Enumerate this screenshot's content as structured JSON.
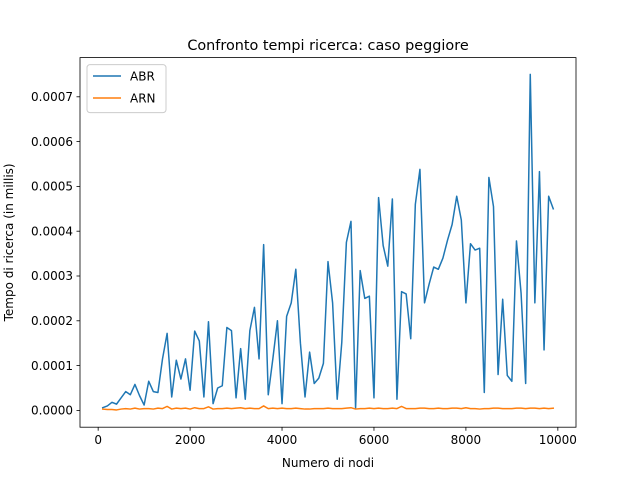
{
  "chart_data": {
    "type": "line",
    "title": "Confronto tempi ricerca: caso peggiore",
    "xlabel": "Numero di nodi",
    "ylabel": "Tempo di ricerca (in millis)",
    "xlim": [
      -395,
      10395
    ],
    "ylim": [
      -3.75e-05,
      0.0007875
    ],
    "xticks": [
      0,
      2000,
      4000,
      6000,
      8000,
      10000
    ],
    "xtick_labels": [
      "0",
      "2000",
      "4000",
      "6000",
      "8000",
      "10000"
    ],
    "yticks": [
      0,
      0.0001,
      0.0002,
      0.0003,
      0.0004,
      0.0005,
      0.0006,
      0.0007
    ],
    "ytick_labels": [
      "0.0000",
      "0.0001",
      "0.0002",
      "0.0003",
      "0.0004",
      "0.0005",
      "0.0006",
      "0.0007"
    ],
    "grid": false,
    "legend_position": "top-left",
    "x": [
      100,
      200,
      300,
      400,
      500,
      600,
      700,
      800,
      900,
      1000,
      1100,
      1200,
      1300,
      1400,
      1500,
      1600,
      1700,
      1800,
      1900,
      2000,
      2100,
      2200,
      2300,
      2400,
      2500,
      2600,
      2700,
      2800,
      2900,
      3000,
      3100,
      3200,
      3300,
      3400,
      3500,
      3600,
      3700,
      3800,
      3900,
      4000,
      4100,
      4200,
      4300,
      4400,
      4500,
      4600,
      4700,
      4800,
      4900,
      5000,
      5100,
      5200,
      5300,
      5400,
      5500,
      5600,
      5700,
      5800,
      5900,
      6000,
      6100,
      6200,
      6300,
      6400,
      6500,
      6600,
      6700,
      6800,
      6900,
      7000,
      7100,
      7200,
      7300,
      7400,
      7500,
      7600,
      7700,
      7800,
      7900,
      8000,
      8100,
      8200,
      8300,
      8400,
      8500,
      8600,
      8700,
      8800,
      8900,
      9000,
      9100,
      9200,
      9300,
      9400,
      9500,
      9600,
      9700,
      9800,
      9900
    ],
    "series": [
      {
        "name": "ABR",
        "color": "#1f77b4",
        "values": [
          6e-06,
          1e-05,
          1.8e-05,
          1.4e-05,
          2.8e-05,
          4.2e-05,
          3.5e-05,
          5.8e-05,
          3.3e-05,
          1.2e-05,
          6.5e-05,
          4.2e-05,
          4e-05,
          0.000115,
          0.000172,
          3e-05,
          0.000112,
          7e-05,
          0.000115,
          4.5e-05,
          0.000177,
          0.000155,
          3e-05,
          0.000198,
          1.5e-05,
          5e-05,
          5.5e-05,
          0.000185,
          0.000178,
          2.8e-05,
          0.000138,
          2.5e-05,
          0.000178,
          0.00023,
          0.000115,
          0.00037,
          3.5e-05,
          0.000115,
          0.0002,
          1.5e-05,
          0.00021,
          0.00024,
          0.000315,
          0.00015,
          3e-05,
          0.00013,
          6e-05,
          7.2e-05,
          0.000105,
          0.000332,
          0.00024,
          2.5e-05,
          0.000152,
          0.000375,
          0.000422,
          5e-06,
          0.000312,
          0.00025,
          0.000255,
          2.8e-05,
          0.000475,
          0.000368,
          0.000322,
          0.000472,
          2.5e-05,
          0.000265,
          0.00026,
          0.00016,
          0.00046,
          0.000538,
          0.00024,
          0.000282,
          0.00032,
          0.000315,
          0.00034,
          0.00038,
          0.000415,
          0.000478,
          0.000425,
          0.00024,
          0.000372,
          0.000358,
          0.000362,
          4e-05,
          0.00052,
          0.000455,
          8e-05,
          0.000248,
          7.8e-05,
          6.5e-05,
          0.000378,
          0.000262,
          6e-05,
          0.00075,
          0.00024,
          0.000533,
          0.000135,
          0.000478,
          0.00045
        ]
      },
      {
        "name": "ARN",
        "color": "#ff7f0e",
        "values": [
          3e-06,
          2e-06,
          2e-06,
          1e-06,
          3e-06,
          4e-06,
          3e-06,
          5e-06,
          3e-06,
          4e-06,
          4e-06,
          3e-06,
          5e-06,
          4e-06,
          9e-06,
          3e-06,
          5e-06,
          4e-06,
          5e-06,
          3e-06,
          6e-06,
          4e-06,
          4e-06,
          8e-06,
          3e-06,
          4e-06,
          4e-06,
          5e-06,
          4e-06,
          5e-06,
          6e-06,
          4e-06,
          5e-06,
          4e-06,
          4e-06,
          1e-05,
          4e-06,
          5e-06,
          4e-06,
          5e-06,
          4e-06,
          4e-06,
          5e-06,
          4e-06,
          3e-06,
          3e-06,
          4e-06,
          4e-06,
          4e-06,
          5e-06,
          4e-06,
          4e-06,
          4e-06,
          5e-06,
          6e-06,
          3e-06,
          4e-06,
          4e-06,
          5e-06,
          4e-06,
          5e-06,
          4e-06,
          4e-06,
          5e-06,
          4e-06,
          9e-06,
          4e-06,
          4e-06,
          4e-06,
          5e-06,
          5e-06,
          4e-06,
          4e-06,
          5e-06,
          4e-06,
          4e-06,
          5e-06,
          5e-06,
          4e-06,
          6e-06,
          4e-06,
          4e-06,
          3e-06,
          4e-06,
          4e-06,
          5e-06,
          5e-06,
          4e-06,
          4e-06,
          4e-06,
          5e-06,
          5e-06,
          4e-06,
          5e-06,
          5e-06,
          4e-06,
          5e-06,
          4e-06,
          5e-06
        ]
      }
    ]
  }
}
